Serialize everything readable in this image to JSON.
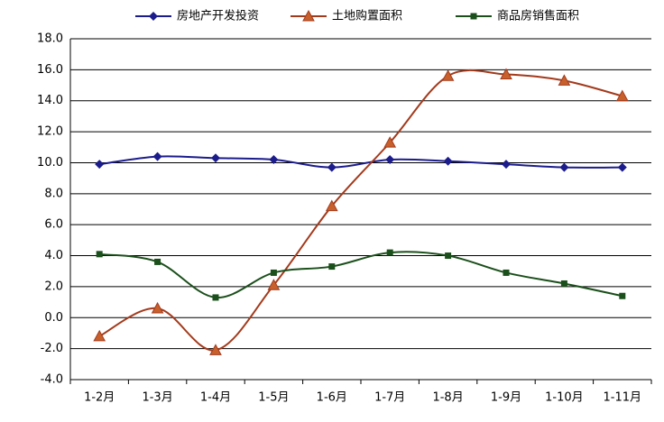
{
  "chart_data": {
    "type": "line",
    "smooth": true,
    "categories": [
      "1-2月",
      "1-3月",
      "1-4月",
      "1-5月",
      "1-6月",
      "1-7月",
      "1-8月",
      "1-9月",
      "1-10月",
      "1-11月"
    ],
    "series": [
      {
        "name": "房地产开发投资",
        "color": "#1c1c8c",
        "marker": "diamond",
        "values": [
          9.9,
          10.4,
          10.3,
          10.2,
          9.7,
          10.2,
          10.1,
          9.9,
          9.7,
          9.7
        ]
      },
      {
        "name": "土地购置面积",
        "color": "#a33a1c",
        "marker": "triangle",
        "values": [
          -1.2,
          0.6,
          -2.1,
          2.1,
          7.2,
          11.3,
          15.6,
          15.7,
          15.3,
          14.3
        ]
      },
      {
        "name": "商品房销售面积",
        "color": "#1b4f1b",
        "marker": "square",
        "values": [
          4.1,
          3.6,
          1.3,
          2.9,
          3.3,
          4.2,
          4.0,
          2.9,
          2.2,
          1.4
        ]
      }
    ],
    "ylim": [
      -4,
      18
    ],
    "yticks": [
      {
        "value": -4,
        "label": "-4.0"
      },
      {
        "value": -2,
        "label": "-2.0"
      },
      {
        "value": 0,
        "label": "0.0"
      },
      {
        "value": 2,
        "label": "2.0"
      },
      {
        "value": 4,
        "label": "4.0"
      },
      {
        "value": 6,
        "label": "6.0"
      },
      {
        "value": 8,
        "label": "8.0"
      },
      {
        "value": 10,
        "label": "10.0"
      },
      {
        "value": 12,
        "label": "12.0"
      },
      {
        "value": 14,
        "label": "14.0"
      },
      {
        "value": 16,
        "label": "16.0"
      },
      {
        "value": 18,
        "label": "18.0"
      }
    ],
    "grid": true,
    "legend": "top"
  }
}
